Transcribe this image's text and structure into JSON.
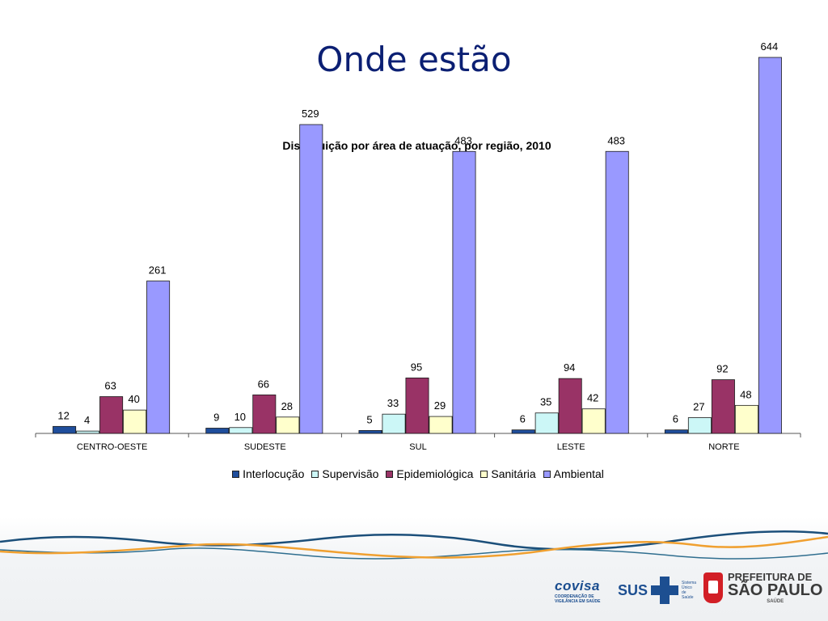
{
  "slide": {
    "title": "Onde estão"
  },
  "chart_data": {
    "type": "bar",
    "title": "Distribuição por área de atuação, por região, 2010",
    "categories": [
      "CENTRO-OESTE",
      "SUDESTE",
      "SUL",
      "LESTE",
      "NORTE"
    ],
    "series": [
      {
        "name": "Interlocução",
        "color": "#1f4e9c",
        "values": [
          12,
          9,
          5,
          6,
          6
        ]
      },
      {
        "name": "Supervisão",
        "color": "#ccf7f7",
        "values": [
          4,
          10,
          33,
          35,
          27
        ]
      },
      {
        "name": "Epidemiológica",
        "color": "#993366",
        "values": [
          63,
          66,
          95,
          94,
          92
        ]
      },
      {
        "name": "Sanitária",
        "color": "#ffffcc",
        "values": [
          40,
          28,
          29,
          42,
          48
        ]
      },
      {
        "name": "Ambiental",
        "color": "#9999ff",
        "values": [
          261,
          529,
          483,
          483,
          644
        ]
      }
    ],
    "ylim": [
      0,
      700
    ],
    "grid": false,
    "legend": "bottom",
    "data_labels": true
  },
  "footer": {
    "logos": {
      "covisa": {
        "name": "covisa",
        "subtitle": "COORDENAÇÃO DE VIGILÂNCIA EM SAÚDE"
      },
      "sus": {
        "name": "SUS",
        "subtitle": "Sistema Único de Saúde"
      },
      "prefeitura": {
        "line1": "PREFEITURA DE",
        "line2": "SÃO PAULO",
        "line3": "SAÚDE"
      }
    }
  }
}
